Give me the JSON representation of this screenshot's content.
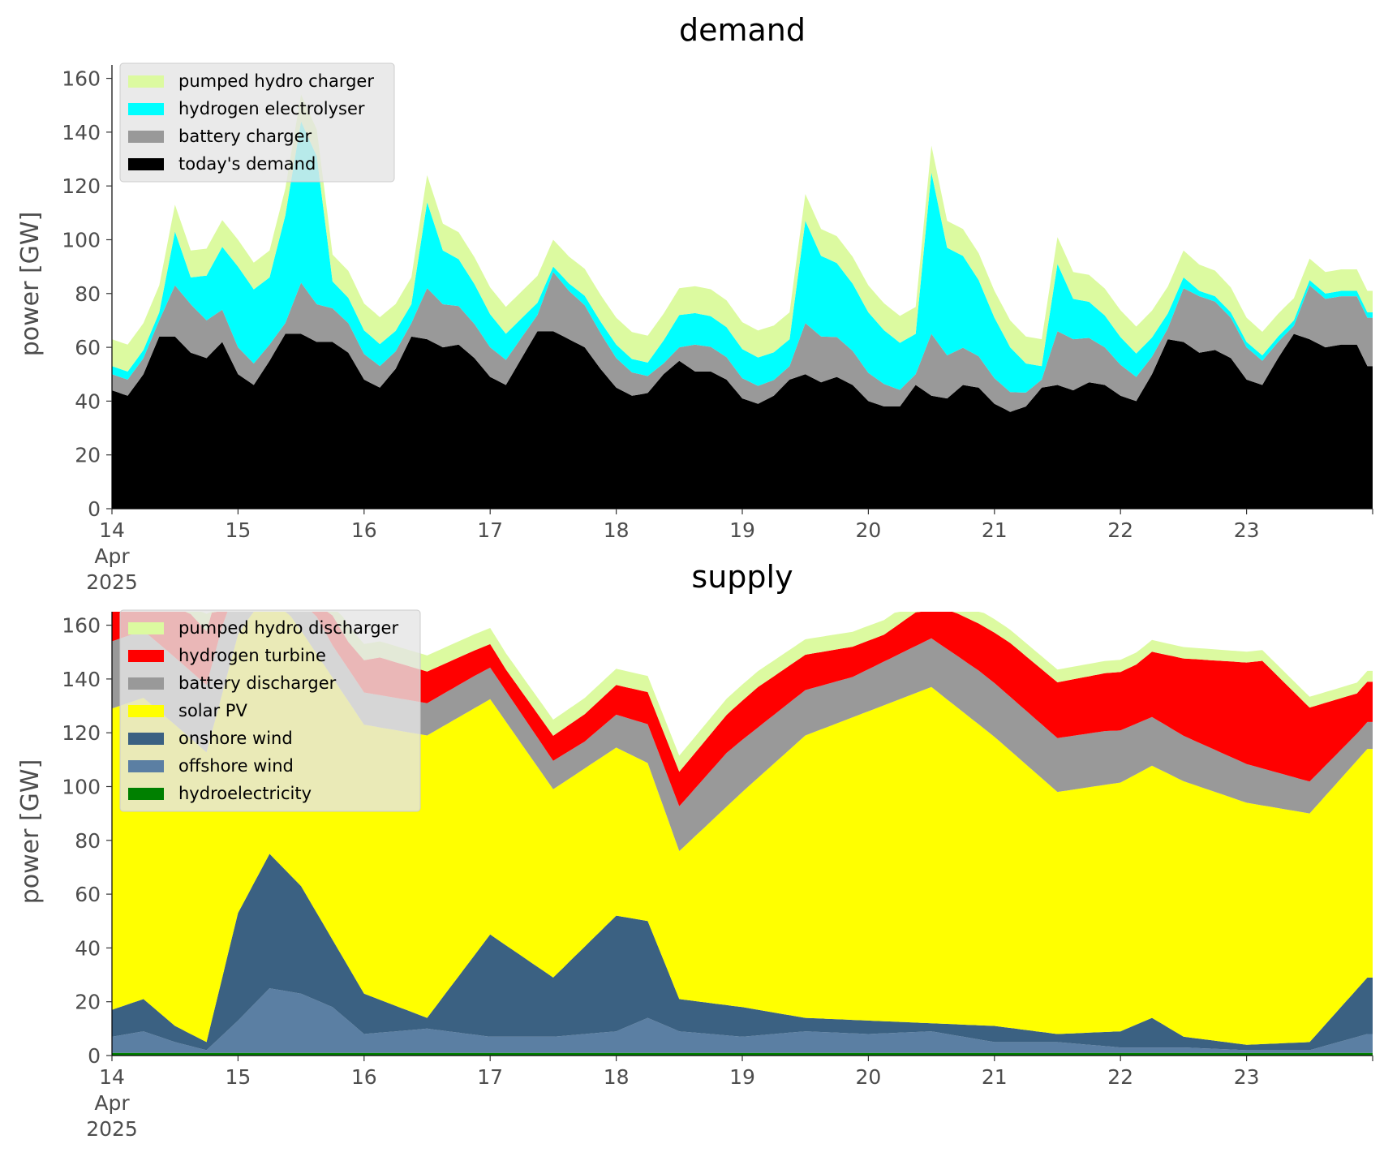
{
  "chart_data": [
    {
      "type": "area",
      "title": "demand",
      "ylabel": "power [GW]",
      "xlabel": "",
      "ylim": [
        0,
        165
      ],
      "yticks": [
        0,
        20,
        40,
        60,
        80,
        100,
        120,
        140,
        160
      ],
      "x_range": [
        "2025-04-14T00:00",
        "2025-04-24T00:00"
      ],
      "x_ticks": [
        {
          "date": "2025-04-14",
          "label": [
            "14",
            "Apr",
            "2025"
          ]
        },
        {
          "date": "2025-04-15",
          "label": [
            "15"
          ]
        },
        {
          "date": "2025-04-16",
          "label": [
            "16"
          ]
        },
        {
          "date": "2025-04-17",
          "label": [
            "17"
          ]
        },
        {
          "date": "2025-04-18",
          "label": [
            "18"
          ]
        },
        {
          "date": "2025-04-19",
          "label": [
            "19"
          ]
        },
        {
          "date": "2025-04-20",
          "label": [
            "20"
          ]
        },
        {
          "date": "2025-04-21",
          "label": [
            "21"
          ]
        },
        {
          "date": "2025-04-22",
          "label": [
            "22"
          ]
        },
        {
          "date": "2025-04-23",
          "label": [
            "23"
          ]
        }
      ],
      "grid": false,
      "legend_position": "top-left",
      "stacking": "cumulative",
      "series": [
        {
          "name": "today's demand",
          "color": "#000000",
          "x": [
            "2025-04-14T00:00",
            "2025-04-14T03:00",
            "2025-04-14T06:00",
            "2025-04-14T09:00",
            "2025-04-14T12:00",
            "2025-04-14T15:00",
            "2025-04-14T18:00",
            "2025-04-14T21:00",
            "2025-04-15T00:00",
            "2025-04-15T03:00",
            "2025-04-15T06:00",
            "2025-04-15T09:00",
            "2025-04-15T12:00",
            "2025-04-15T15:00",
            "2025-04-15T18:00",
            "2025-04-15T21:00",
            "2025-04-16T00:00",
            "2025-04-16T03:00",
            "2025-04-16T06:00",
            "2025-04-16T09:00",
            "2025-04-16T12:00",
            "2025-04-16T15:00",
            "2025-04-16T18:00",
            "2025-04-16T21:00",
            "2025-04-17T00:00",
            "2025-04-17T03:00",
            "2025-04-17T06:00",
            "2025-04-17T09:00",
            "2025-04-17T12:00",
            "2025-04-17T15:00",
            "2025-04-17T18:00",
            "2025-04-17T21:00",
            "2025-04-18T00:00",
            "2025-04-18T03:00",
            "2025-04-18T06:00",
            "2025-04-18T09:00",
            "2025-04-18T12:00",
            "2025-04-18T15:00",
            "2025-04-18T18:00",
            "2025-04-18T21:00",
            "2025-04-19T00:00",
            "2025-04-19T03:00",
            "2025-04-19T06:00",
            "2025-04-19T09:00",
            "2025-04-19T12:00",
            "2025-04-19T15:00",
            "2025-04-19T18:00",
            "2025-04-19T21:00",
            "2025-04-20T00:00",
            "2025-04-20T03:00",
            "2025-04-20T06:00",
            "2025-04-20T09:00",
            "2025-04-20T12:00",
            "2025-04-20T15:00",
            "2025-04-20T18:00",
            "2025-04-20T21:00",
            "2025-04-21T00:00",
            "2025-04-21T03:00",
            "2025-04-21T06:00",
            "2025-04-21T09:00",
            "2025-04-21T12:00",
            "2025-04-21T15:00",
            "2025-04-21T18:00",
            "2025-04-21T21:00",
            "2025-04-22T00:00",
            "2025-04-22T03:00",
            "2025-04-22T06:00",
            "2025-04-22T09:00",
            "2025-04-22T12:00",
            "2025-04-22T15:00",
            "2025-04-22T18:00",
            "2025-04-22T21:00",
            "2025-04-23T00:00",
            "2025-04-23T03:00",
            "2025-04-23T06:00",
            "2025-04-23T09:00",
            "2025-04-23T12:00",
            "2025-04-23T15:00",
            "2025-04-23T18:00",
            "2025-04-23T21:00",
            "2025-04-23T23:00"
          ],
          "values": [
            44,
            42,
            50,
            64,
            64,
            58,
            56,
            62,
            50,
            46,
            55,
            65,
            65,
            62,
            62,
            58,
            48,
            45,
            52,
            64,
            63,
            60,
            61,
            56,
            49,
            46,
            56,
            66,
            66,
            63,
            60,
            52,
            45,
            42,
            43,
            50,
            55,
            51,
            51,
            48,
            41,
            39,
            42,
            48,
            50,
            47,
            49,
            46,
            40,
            38,
            38,
            46,
            42,
            41,
            46,
            45,
            39,
            36,
            38,
            45,
            46,
            44,
            47,
            46,
            42,
            40,
            50,
            63,
            62,
            58,
            59,
            56,
            48,
            46,
            56,
            65,
            63,
            60,
            61,
            61,
            53
          ]
        },
        {
          "name": "battery charger",
          "color": "#999999",
          "x": [
            "2025-04-14T09:00",
            "2025-04-14T12:00",
            "2025-04-14T15:00",
            "2025-04-14T18:00",
            "2025-04-15T09:00",
            "2025-04-15T12:00",
            "2025-04-15T15:00",
            "2025-04-16T09:00",
            "2025-04-16T12:00",
            "2025-04-16T15:00",
            "2025-04-17T09:00",
            "2025-04-17T12:00",
            "2025-04-17T15:00",
            "2025-04-18T09:00",
            "2025-04-18T12:00",
            "2025-04-18T15:00",
            "2025-04-19T09:00",
            "2025-04-19T12:00",
            "2025-04-19T15:00",
            "2025-04-20T09:00",
            "2025-04-20T12:00",
            "2025-04-20T15:00",
            "2025-04-21T09:00",
            "2025-04-21T12:00",
            "2025-04-21T15:00",
            "2025-04-22T09:00",
            "2025-04-22T12:00",
            "2025-04-22T15:00",
            "2025-04-23T09:00",
            "2025-04-23T12:00",
            "2025-04-23T15:00"
          ],
          "values": [
            6,
            19,
            18,
            14,
            4,
            19,
            14,
            5,
            19,
            16,
            6,
            22,
            18,
            4,
            5,
            10,
            5,
            19,
            17,
            4,
            23,
            16,
            3,
            20,
            19,
            4,
            20,
            21,
            3,
            20,
            18
          ]
        },
        {
          "name": "hydrogen electrolyser",
          "color": "#00ffff",
          "x": [
            "2025-04-14T09:00",
            "2025-04-14T12:00",
            "2025-04-14T15:00",
            "2025-04-15T00:00",
            "2025-04-15T06:00",
            "2025-04-15T09:00",
            "2025-04-15T12:00",
            "2025-04-15T15:00",
            "2025-04-15T18:00",
            "2025-04-16T09:00",
            "2025-04-16T12:00",
            "2025-04-16T15:00",
            "2025-04-17T12:00",
            "2025-04-18T00:00",
            "2025-04-18T06:00",
            "2025-04-18T12:00",
            "2025-04-19T09:00",
            "2025-04-19T12:00",
            "2025-04-19T15:00",
            "2025-04-20T09:00",
            "2025-04-20T12:00",
            "2025-04-20T15:00",
            "2025-04-21T09:00",
            "2025-04-21T12:00",
            "2025-04-21T15:00",
            "2025-04-22T12:00",
            "2025-04-22T15:00"
          ],
          "values": [
            3,
            20,
            10,
            30,
            25,
            40,
            60,
            55,
            10,
            7,
            32,
            20,
            2,
            5,
            5,
            12,
            10,
            38,
            30,
            15,
            60,
            40,
            5,
            25,
            15,
            4,
            2
          ]
        },
        {
          "name": "pumped hydro charger",
          "color": "#dcfaa0",
          "x": [
            "2025-04-14T12:00",
            "2025-04-16T12:00",
            "2025-04-17T12:00",
            "2025-04-19T12:00",
            "2025-04-20T12:00",
            "2025-04-21T12:00",
            "2025-04-22T12:00",
            "2025-04-23T12:00"
          ],
          "values": [
            10,
            10,
            10,
            10,
            10,
            10,
            10,
            8
          ]
        }
      ]
    },
    {
      "type": "area",
      "title": "supply",
      "ylabel": "power [GW]",
      "xlabel": "",
      "ylim": [
        0,
        165
      ],
      "yticks": [
        0,
        20,
        40,
        60,
        80,
        100,
        120,
        140,
        160
      ],
      "x_range": [
        "2025-04-14T00:00",
        "2025-04-24T00:00"
      ],
      "x_ticks": [
        {
          "date": "2025-04-14",
          "label": [
            "14",
            "Apr",
            "2025"
          ]
        },
        {
          "date": "2025-04-15",
          "label": [
            "15"
          ]
        },
        {
          "date": "2025-04-16",
          "label": [
            "16"
          ]
        },
        {
          "date": "2025-04-17",
          "label": [
            "17"
          ]
        },
        {
          "date": "2025-04-18",
          "label": [
            "18"
          ]
        },
        {
          "date": "2025-04-19",
          "label": [
            "19"
          ]
        },
        {
          "date": "2025-04-20",
          "label": [
            "20"
          ]
        },
        {
          "date": "2025-04-21",
          "label": [
            "21"
          ]
        },
        {
          "date": "2025-04-22",
          "label": [
            "22"
          ]
        },
        {
          "date": "2025-04-23",
          "label": [
            "23"
          ]
        }
      ],
      "grid": false,
      "legend_position": "top-left",
      "stacking": "cumulative",
      "series": [
        {
          "name": "hydroelectricity",
          "color": "#008000",
          "values_note_free": true,
          "x": [
            "2025-04-14T00:00",
            "2025-04-23T23:00"
          ],
          "values": [
            1,
            1
          ]
        },
        {
          "name": "offshore wind",
          "color": "#5b7fa3",
          "x": [
            "2025-04-14T00:00",
            "2025-04-14T06:00",
            "2025-04-14T12:00",
            "2025-04-14T18:00",
            "2025-04-15T00:00",
            "2025-04-15T06:00",
            "2025-04-15T12:00",
            "2025-04-15T18:00",
            "2025-04-16T00:00",
            "2025-04-16T12:00",
            "2025-04-17T00:00",
            "2025-04-17T12:00",
            "2025-04-18T00:00",
            "2025-04-18T06:00",
            "2025-04-18T12:00",
            "2025-04-19T00:00",
            "2025-04-19T12:00",
            "2025-04-20T00:00",
            "2025-04-20T12:00",
            "2025-04-21T00:00",
            "2025-04-21T12:00",
            "2025-04-22T00:00",
            "2025-04-22T12:00",
            "2025-04-23T00:00",
            "2025-04-23T12:00",
            "2025-04-23T23:00"
          ],
          "values": [
            6,
            8,
            4,
            1,
            12,
            24,
            22,
            17,
            7,
            9,
            6,
            6,
            8,
            13,
            8,
            6,
            8,
            7,
            8,
            4,
            4,
            2,
            2,
            1,
            1,
            7
          ]
        },
        {
          "name": "onshore wind",
          "color": "#3b6182",
          "x": [
            "2025-04-14T00:00",
            "2025-04-14T06:00",
            "2025-04-14T12:00",
            "2025-04-14T18:00",
            "2025-04-15T00:00",
            "2025-04-15T06:00",
            "2025-04-15T12:00",
            "2025-04-15T18:00",
            "2025-04-16T00:00",
            "2025-04-16T12:00",
            "2025-04-17T00:00",
            "2025-04-17T12:00",
            "2025-04-18T00:00",
            "2025-04-18T06:00",
            "2025-04-18T12:00",
            "2025-04-19T00:00",
            "2025-04-19T12:00",
            "2025-04-20T00:00",
            "2025-04-20T12:00",
            "2025-04-21T00:00",
            "2025-04-21T12:00",
            "2025-04-22T00:00",
            "2025-04-22T06:00",
            "2025-04-22T12:00",
            "2025-04-23T00:00",
            "2025-04-23T12:00",
            "2025-04-23T23:00"
          ],
          "values": [
            10,
            12,
            6,
            3,
            40,
            50,
            40,
            25,
            15,
            4,
            38,
            22,
            43,
            36,
            12,
            11,
            5,
            5,
            3,
            6,
            3,
            6,
            11,
            4,
            2,
            3,
            21
          ]
        },
        {
          "name": "solar PV",
          "color": "#ffff00",
          "x": [
            "2025-04-14T12:00",
            "2025-04-15T12:00",
            "2025-04-16T12:00",
            "2025-04-17T12:00",
            "2025-04-18T12:00",
            "2025-04-19T12:00",
            "2025-04-20T12:00",
            "2025-04-21T12:00",
            "2025-04-22T12:00",
            "2025-04-23T12:00"
          ],
          "values": [
            112,
            95,
            105,
            70,
            55,
            105,
            125,
            90,
            95,
            85
          ]
        },
        {
          "name": "battery discharger",
          "color": "#999999",
          "x": [
            "2025-04-14T21:00",
            "2025-04-15T18:00",
            "2025-04-16T21:00",
            "2025-04-17T18:00",
            "2025-04-18T21:00",
            "2025-04-19T21:00",
            "2025-04-20T21:00",
            "2025-04-21T21:00",
            "2025-04-22T21:00",
            "2025-04-23T21:00"
          ],
          "values": [
            25,
            12,
            12,
            10,
            20,
            15,
            20,
            20,
            15,
            10
          ]
        },
        {
          "name": "hydrogen turbine",
          "color": "#ff0000",
          "x": [
            "2025-04-14T03:00",
            "2025-04-14T06:00",
            "2025-04-14T18:00",
            "2025-04-15T21:00",
            "2025-04-16T03:00",
            "2025-04-17T03:00",
            "2025-04-19T03:00",
            "2025-04-20T03:00",
            "2025-04-21T03:00",
            "2025-04-22T03:00",
            "2025-04-23T03:00",
            "2025-04-23T21:00"
          ],
          "values": [
            12,
            25,
            20,
            10,
            14,
            8,
            15,
            10,
            20,
            22,
            40,
            15
          ]
        },
        {
          "name": "pumped hydro discharger",
          "color": "#dcfaa0",
          "x": [
            "2025-04-14T00:00",
            "2025-04-15T00:00",
            "2025-04-16T00:00",
            "2025-04-19T00:00",
            "2025-04-21T00:00",
            "2025-04-23T00:00"
          ],
          "values": [
            8,
            6,
            6,
            6,
            5,
            4
          ]
        }
      ]
    }
  ]
}
